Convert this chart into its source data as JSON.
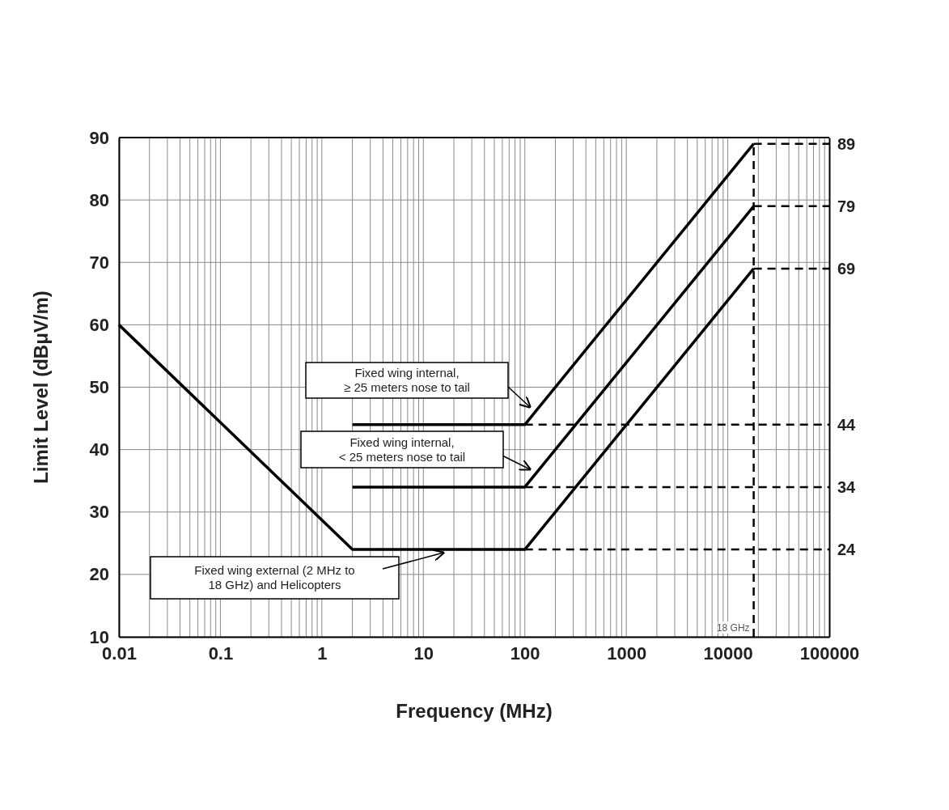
{
  "chart_data": {
    "type": "line",
    "xlabel": "Frequency (MHz)",
    "ylabel": "Limit Level (dBμV/m)",
    "log": "x",
    "xlim": [
      0.01,
      100000
    ],
    "xticks": [
      0.01,
      0.1,
      1,
      10,
      100,
      1000,
      10000,
      100000
    ],
    "ylim": [
      10,
      90
    ],
    "yticks": [
      10,
      20,
      30,
      40,
      50,
      60,
      70,
      80,
      90
    ],
    "y2lim": [
      10,
      90
    ],
    "y2ticks": [
      24,
      34,
      44,
      69,
      79,
      89
    ],
    "grid": true,
    "marker": "none",
    "series": [
      {
        "color": "#000000",
        "x": [
          0.01,
          2,
          100,
          18000
        ],
        "values": [
          60,
          24,
          24,
          69
        ],
        "line_style": "solid"
      },
      {
        "color": "#000000",
        "x": [
          2,
          100,
          18000
        ],
        "values": [
          34,
          34,
          79
        ],
        "line_style": "solid"
      },
      {
        "color": "#000000",
        "x": [
          2,
          100,
          18000
        ],
        "values": [
          44,
          44,
          89
        ],
        "line_style": "solid"
      },
      {
        "color": "#000000",
        "x": [
          100,
          100000
        ],
        "values": [
          24,
          24
        ],
        "line_style": "dashed"
      },
      {
        "color": "#000000",
        "x": [
          100,
          100000
        ],
        "values": [
          34,
          34
        ],
        "line_style": "dashed"
      },
      {
        "color": "#000000",
        "x": [
          100,
          100000
        ],
        "values": [
          44,
          44
        ],
        "line_style": "dashed"
      },
      {
        "color": "#000000",
        "x": [
          18000,
          100000
        ],
        "values": [
          69,
          69
        ],
        "line_style": "dashed"
      },
      {
        "color": "#000000",
        "x": [
          18000,
          100000
        ],
        "values": [
          79,
          79
        ],
        "line_style": "dashed"
      },
      {
        "color": "#000000",
        "x": [
          18000,
          100000
        ],
        "values": [
          89,
          89
        ],
        "line_style": "dashed"
      },
      {
        "color": "#000000",
        "x": [
          18000,
          18000
        ],
        "values": [
          10,
          89
        ],
        "line_style": "dashed"
      }
    ],
    "annotations": [
      "Fixed wing internal,\n≥ 25 meters nose to tail",
      "Fixed wing internal,\n< 25 meters nose to tail",
      "Fixed wing external (2 MHz to\n18 GHz) and Helicopters",
      {
        "text": "18 GHz",
        "x": 18000,
        "y": 10
      }
    ]
  }
}
